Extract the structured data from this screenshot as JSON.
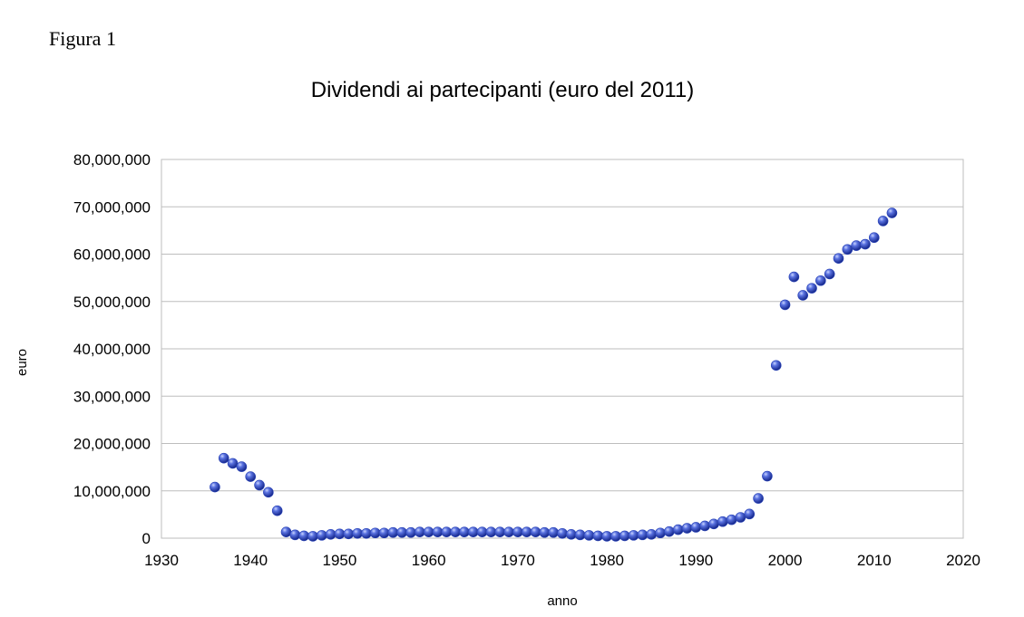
{
  "figure_label": "Figura 1",
  "chart_data": {
    "type": "scatter",
    "title": "Dividendi ai partecipanti  (euro del 2011)",
    "xlabel": "anno",
    "ylabel": "euro",
    "xlim": [
      1930,
      2020
    ],
    "ylim": [
      0,
      80000000
    ],
    "x_ticks": [
      1930,
      1940,
      1950,
      1960,
      1970,
      1980,
      1990,
      2000,
      2010,
      2020
    ],
    "x_tick_labels": [
      "1930",
      "1940",
      "1950",
      "1960",
      "1970",
      "1980",
      "1990",
      "2000",
      "2010",
      "2020"
    ],
    "y_ticks": [
      0,
      10000000,
      20000000,
      30000000,
      40000000,
      50000000,
      60000000,
      70000000,
      80000000
    ],
    "y_tick_labels": [
      "0",
      "10,000,000",
      "20,000,000",
      "30,000,000",
      "40,000,000",
      "50,000,000",
      "60,000,000",
      "70,000,000",
      "80,000,000"
    ],
    "grid": "horizontal",
    "legend": "none",
    "marker_color": "#2a44b8",
    "series": [
      {
        "points": [
          [
            1936,
            10800000
          ],
          [
            1937,
            16900000
          ],
          [
            1938,
            15800000
          ],
          [
            1939,
            15100000
          ],
          [
            1940,
            13000000
          ],
          [
            1941,
            11200000
          ],
          [
            1942,
            9700000
          ],
          [
            1943,
            5800000
          ],
          [
            1944,
            1300000
          ],
          [
            1945,
            700000
          ],
          [
            1946,
            500000
          ],
          [
            1947,
            400000
          ],
          [
            1948,
            600000
          ],
          [
            1949,
            800000
          ],
          [
            1950,
            900000
          ],
          [
            1951,
            900000
          ],
          [
            1952,
            1000000
          ],
          [
            1953,
            1000000
          ],
          [
            1954,
            1100000
          ],
          [
            1955,
            1100000
          ],
          [
            1956,
            1200000
          ],
          [
            1957,
            1200000
          ],
          [
            1958,
            1200000
          ],
          [
            1959,
            1300000
          ],
          [
            1960,
            1300000
          ],
          [
            1961,
            1300000
          ],
          [
            1962,
            1300000
          ],
          [
            1963,
            1300000
          ],
          [
            1964,
            1300000
          ],
          [
            1965,
            1300000
          ],
          [
            1966,
            1300000
          ],
          [
            1967,
            1300000
          ],
          [
            1968,
            1300000
          ],
          [
            1969,
            1300000
          ],
          [
            1970,
            1300000
          ],
          [
            1971,
            1300000
          ],
          [
            1972,
            1300000
          ],
          [
            1973,
            1200000
          ],
          [
            1974,
            1200000
          ],
          [
            1975,
            1000000
          ],
          [
            1976,
            800000
          ],
          [
            1977,
            700000
          ],
          [
            1978,
            600000
          ],
          [
            1979,
            500000
          ],
          [
            1980,
            400000
          ],
          [
            1981,
            400000
          ],
          [
            1982,
            500000
          ],
          [
            1983,
            600000
          ],
          [
            1984,
            700000
          ],
          [
            1985,
            800000
          ],
          [
            1986,
            1100000
          ],
          [
            1987,
            1400000
          ],
          [
            1988,
            1800000
          ],
          [
            1989,
            2100000
          ],
          [
            1990,
            2300000
          ],
          [
            1991,
            2600000
          ],
          [
            1992,
            3000000
          ],
          [
            1993,
            3500000
          ],
          [
            1994,
            3900000
          ],
          [
            1995,
            4400000
          ],
          [
            1996,
            5100000
          ],
          [
            1997,
            8400000
          ],
          [
            1998,
            13100000
          ],
          [
            1999,
            36500000
          ],
          [
            2000,
            49300000
          ],
          [
            2001,
            55200000
          ],
          [
            2002,
            51300000
          ],
          [
            2003,
            52800000
          ],
          [
            2004,
            54400000
          ],
          [
            2005,
            55800000
          ],
          [
            2006,
            59100000
          ],
          [
            2007,
            61000000
          ],
          [
            2008,
            61800000
          ],
          [
            2009,
            62100000
          ],
          [
            2010,
            63500000
          ],
          [
            2011,
            67000000
          ],
          [
            2012,
            68700000
          ]
        ]
      }
    ]
  }
}
